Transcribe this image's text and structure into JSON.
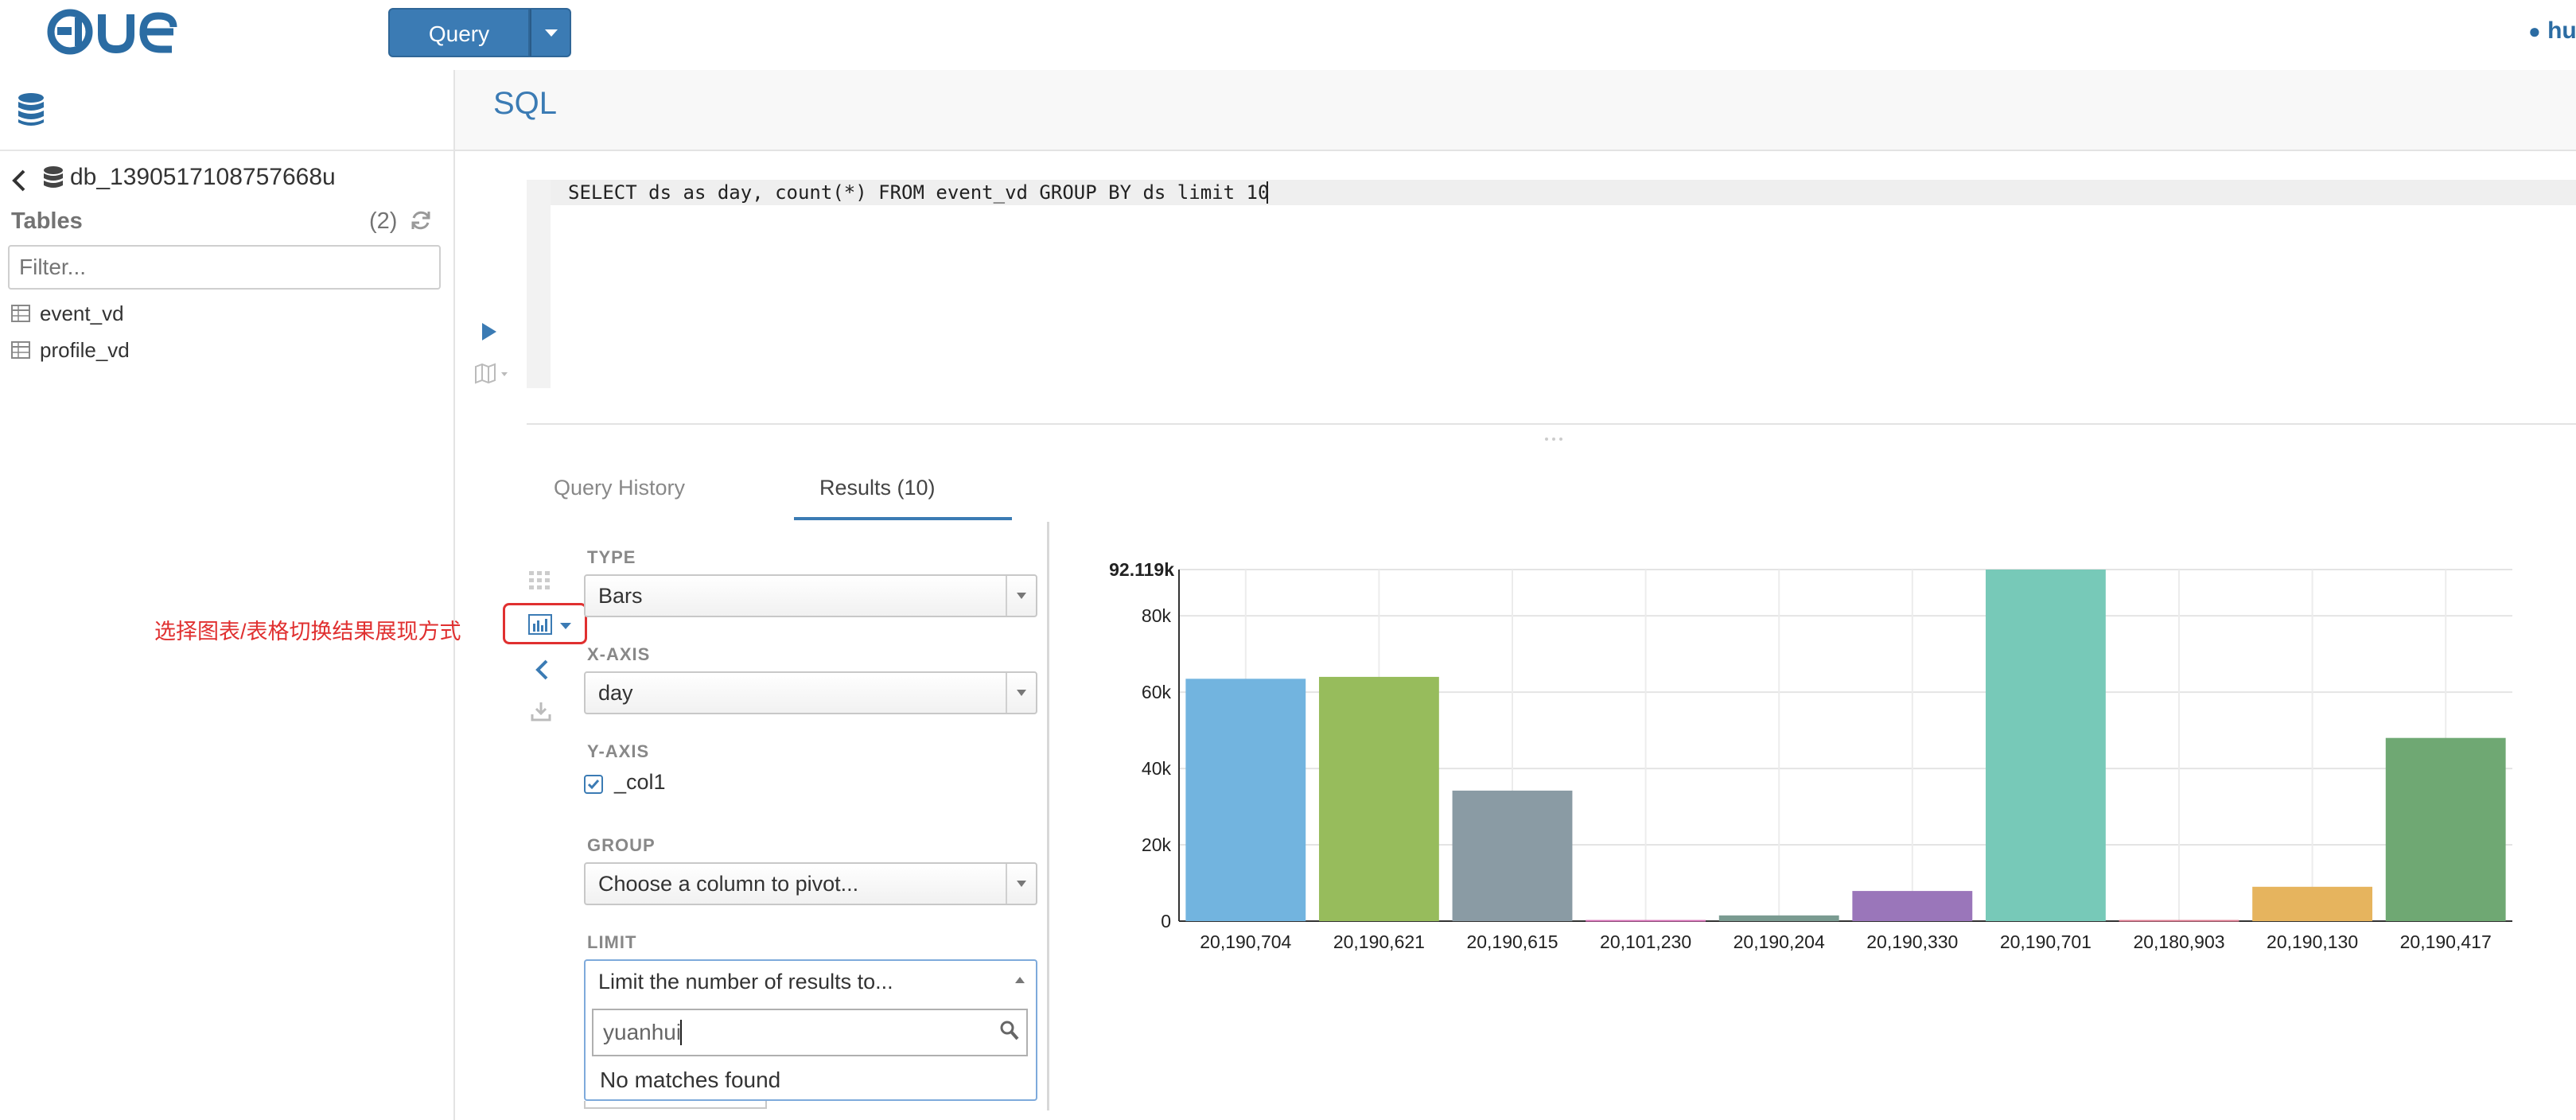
{
  "navbar": {
    "logo_text": "HUE",
    "query_button_label": "Query",
    "user_label": "hu"
  },
  "left_panel": {
    "database_name": "db_1390517108757668u",
    "tables_title": "Tables",
    "tables_count": "(2)",
    "filter_placeholder": "Filter...",
    "tables": [
      {
        "name": "event_vd"
      },
      {
        "name": "profile_vd"
      }
    ]
  },
  "editor": {
    "title": "SQL",
    "query": "SELECT ds as day, count(*) FROM event_vd GROUP BY ds limit 10"
  },
  "tabs": {
    "history_label": "Query History",
    "results_label": "Results (10)"
  },
  "annotation_text": "选择图表/表格切换结果展现方式",
  "chart_settings": {
    "type_label": "TYPE",
    "type_value": "Bars",
    "x_axis_label": "X-AXIS",
    "x_axis_value": "day",
    "y_axis_label": "Y-AXIS",
    "y_axis_column": "_col1",
    "y_axis_checked": true,
    "group_label": "GROUP",
    "group_placeholder": "Choose a column to pivot...",
    "limit_label": "LIMIT",
    "limit_placeholder": "Limit the number of results to...",
    "search_value": "yuanhui",
    "no_matches_text": "No matches found"
  },
  "colors": {
    "accent": "#3b7bb4",
    "annotation": "#e03030"
  },
  "chart_data": {
    "type": "bar",
    "categories": [
      "20,190,704",
      "20,190,621",
      "20,190,615",
      "20,101,230",
      "20,190,204",
      "20,190,330",
      "20,190,701",
      "20,180,903",
      "20,190,130",
      "20,190,417"
    ],
    "values": [
      63500,
      64000,
      34200,
      300,
      1500,
      7900,
      92119,
      300,
      9000,
      48000
    ],
    "colors": [
      "#72b4df",
      "#97bc5c",
      "#8a9ba4",
      "#d870b8",
      "#7a9b91",
      "#9a76ba",
      "#77c9b8",
      "#e07b91",
      "#e6b45e",
      "#6fa873"
    ],
    "y_ticks": [
      "0",
      "20k",
      "40k",
      "60k",
      "80k"
    ],
    "y_tick_values": [
      0,
      20000,
      40000,
      60000,
      80000
    ],
    "y_max_label": "92.119k",
    "ylim": [
      0,
      92119
    ],
    "grid": true
  }
}
